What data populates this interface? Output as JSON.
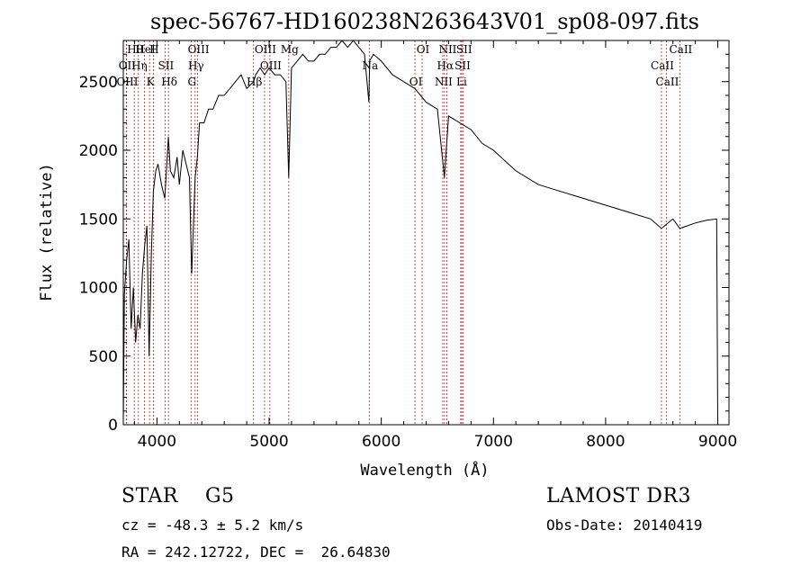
{
  "chart_data": {
    "type": "line",
    "title": "spec-56767-HD160238N263643V01_sp08-097.fits",
    "xlabel": "Wavelength (Å)",
    "ylabel": "Flux (relative)",
    "xlim": [
      3700,
      9100
    ],
    "ylim": [
      0,
      2800
    ],
    "x_ticks": [
      4000,
      5000,
      6000,
      7000,
      8000,
      9000
    ],
    "y_ticks": [
      0,
      500,
      1000,
      1500,
      2000,
      2500
    ],
    "grid": false,
    "series": [
      {
        "name": "spectrum",
        "x": [
          3700,
          3710,
          3730,
          3750,
          3770,
          3790,
          3810,
          3830,
          3850,
          3870,
          3890,
          3910,
          3930,
          3950,
          3968,
          3990,
          4010,
          4040,
          4070,
          4102,
          4120,
          4150,
          4180,
          4200,
          4230,
          4260,
          4290,
          4310,
          4340,
          4360,
          4380,
          4420,
          4460,
          4500,
          4550,
          4600,
          4650,
          4700,
          4750,
          4800,
          4861,
          4880,
          4920,
          4960,
          5000,
          5050,
          5100,
          5150,
          5175,
          5200,
          5250,
          5300,
          5350,
          5400,
          5450,
          5500,
          5550,
          5600,
          5650,
          5700,
          5750,
          5800,
          5850,
          5890,
          5896,
          5930,
          6000,
          6100,
          6200,
          6300,
          6400,
          6500,
          6563,
          6600,
          6700,
          6800,
          6900,
          7000,
          7200,
          7400,
          7600,
          7800,
          8000,
          8200,
          8400,
          8498,
          8542,
          8600,
          8662,
          8800,
          8900,
          8990,
          9000
        ],
        "values": [
          0,
          950,
          1200,
          1350,
          700,
          1000,
          600,
          800,
          700,
          1100,
          1300,
          1450,
          500,
          1250,
          1700,
          1850,
          1900,
          1750,
          1650,
          2100,
          1850,
          1800,
          1950,
          1750,
          2000,
          1900,
          1800,
          1100,
          1800,
          1950,
          2200,
          2200,
          2300,
          2300,
          2400,
          2400,
          2450,
          2500,
          2550,
          2450,
          2500,
          2550,
          2600,
          2550,
          2600,
          2550,
          2550,
          2500,
          1800,
          2600,
          2650,
          2700,
          2650,
          2650,
          2700,
          2700,
          2750,
          2750,
          2800,
          2750,
          2800,
          2750,
          2700,
          2350,
          2650,
          2700,
          2650,
          2550,
          2500,
          2450,
          2350,
          2300,
          1800,
          2250,
          2200,
          2150,
          2050,
          2000,
          1850,
          1750,
          1700,
          1650,
          1600,
          1550,
          1500,
          1430,
          1460,
          1500,
          1430,
          1470,
          1490,
          1500,
          0
        ]
      }
    ],
    "emission_lines": [
      {
        "label": "Hθ",
        "wavelength": 3797
      },
      {
        "label": "OII",
        "wavelength": 3727
      },
      {
        "label": "OIII",
        "wavelength": 3728
      },
      {
        "label": "HeI",
        "wavelength": 3889
      },
      {
        "label": "Hη",
        "wavelength": 3835
      },
      {
        "label": "K",
        "wavelength": 3934
      },
      {
        "label": "H",
        "wavelength": 3968
      },
      {
        "label": "SII",
        "wavelength": 4072
      },
      {
        "label": "Hδ",
        "wavelength": 4102
      },
      {
        "label": "OIII",
        "wavelength": 4363
      },
      {
        "label": "Hγ",
        "wavelength": 4340
      },
      {
        "label": "G",
        "wavelength": 4304
      },
      {
        "label": "OIII",
        "wavelength": 4959
      },
      {
        "label": "OIII",
        "wavelength": 5007
      },
      {
        "label": "Hβ",
        "wavelength": 4861
      },
      {
        "label": "Mg",
        "wavelength": 5175
      },
      {
        "label": "Na",
        "wavelength": 5893
      },
      {
        "label": "OI",
        "wavelength": 6300
      },
      {
        "label": "OI",
        "wavelength": 6364
      },
      {
        "label": "Hα",
        "wavelength": 6563
      },
      {
        "label": "NII",
        "wavelength": 6548
      },
      {
        "label": "NII",
        "wavelength": 6584
      },
      {
        "label": "SII",
        "wavelength": 6717
      },
      {
        "label": "Li",
        "wavelength": 6708
      },
      {
        "label": "SII",
        "wavelength": 6731
      },
      {
        "label": "CaII",
        "wavelength": 8498
      },
      {
        "label": "CaII",
        "wavelength": 8542
      },
      {
        "label": "CaII",
        "wavelength": 8662
      }
    ]
  },
  "info": {
    "object_class": "STAR    G5",
    "survey": "LAMOST DR3",
    "redshift": "cz = -48.3 ± 5.2 km/s",
    "obs_date": "Obs-Date: 20140419",
    "coordinates": "RA = 242.12722, DEC =  26.64830"
  },
  "colors": {
    "spectrum": "#000000",
    "line_marker": "#b22222",
    "axes": "#000000"
  }
}
